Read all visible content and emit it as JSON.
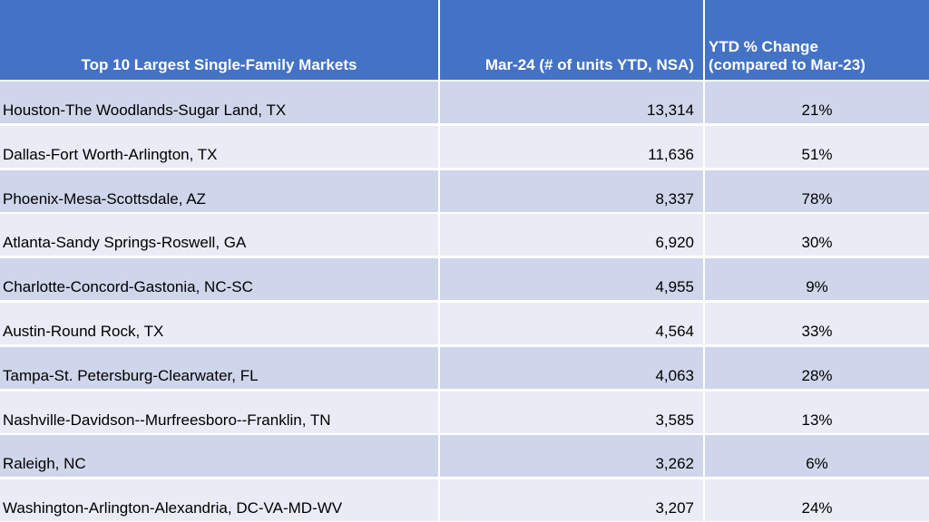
{
  "table": {
    "headers": [
      "Top 10 Largest Single-Family Markets",
      "Mar-24 (# of units YTD, NSA)",
      "YTD % Change\n(compared to Mar-23)"
    ],
    "rows": [
      {
        "market": "Houston-The Woodlands-Sugar Land, TX",
        "units": "13,314",
        "change": "21%"
      },
      {
        "market": "Dallas-Fort Worth-Arlington, TX",
        "units": "11,636",
        "change": "51%"
      },
      {
        "market": "Phoenix-Mesa-Scottsdale, AZ",
        "units": "8,337",
        "change": "78%"
      },
      {
        "market": "Atlanta-Sandy Springs-Roswell, GA",
        "units": "6,920",
        "change": "30%"
      },
      {
        "market": "Charlotte-Concord-Gastonia, NC-SC",
        "units": "4,955",
        "change": "9%"
      },
      {
        "market": "Austin-Round Rock, TX",
        "units": "4,564",
        "change": "33%"
      },
      {
        "market": "Tampa-St. Petersburg-Clearwater, FL",
        "units": "4,063",
        "change": "28%"
      },
      {
        "market": "Nashville-Davidson--Murfreesboro--Franklin, TN",
        "units": "3,585",
        "change": "13%"
      },
      {
        "market": "Raleigh, NC",
        "units": "3,262",
        "change": "6%"
      },
      {
        "market": "Washington-Arlington-Alexandria, DC-VA-MD-WV",
        "units": "3,207",
        "change": "24%"
      }
    ]
  },
  "colors": {
    "header_bg": "#4472c4",
    "row_odd": "#cfd5ea",
    "row_even": "#e9ebf5"
  }
}
